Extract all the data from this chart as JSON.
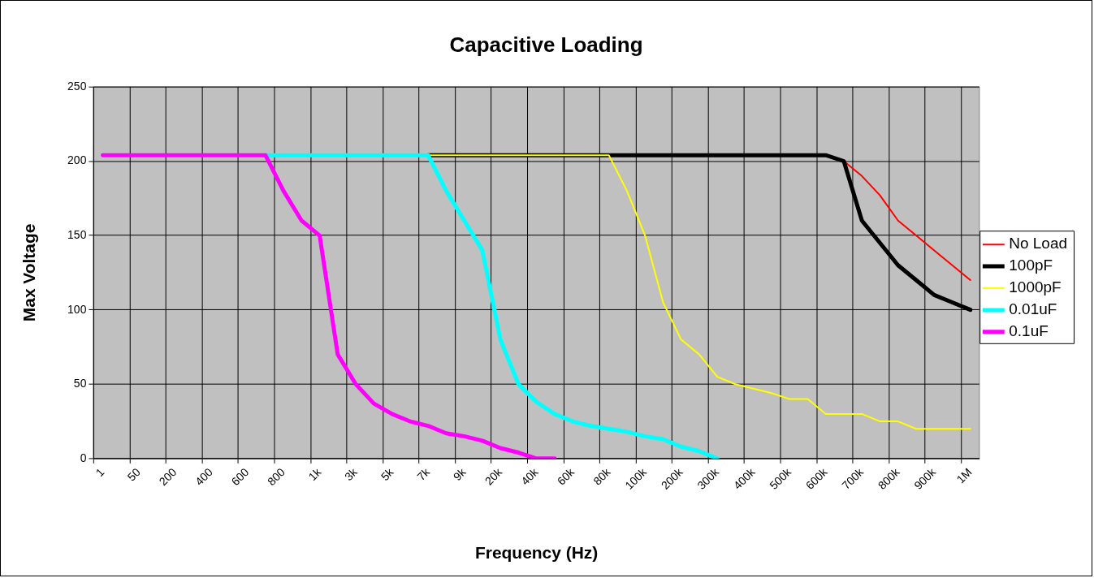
{
  "chart_data": {
    "type": "line",
    "title": "Capacitive Loading",
    "xlabel": "Frequency (Hz)",
    "ylabel": "Max Voltage",
    "categories": [
      "1",
      null,
      "50",
      null,
      "200",
      null,
      "400",
      null,
      "600",
      null,
      "800",
      null,
      "1k",
      null,
      "3k",
      null,
      "5k",
      null,
      "7k",
      null,
      "9k",
      null,
      "20k",
      null,
      "40k",
      null,
      "60k",
      null,
      "80k",
      null,
      "100k",
      null,
      "200k",
      null,
      "300k",
      null,
      "400k",
      null,
      "500k",
      null,
      "600k",
      null,
      "700k",
      null,
      "800k",
      null,
      "900k",
      null,
      "1M"
    ],
    "series": [
      {
        "name": "No Load",
        "color": "#ff0000",
        "values": [
          null,
          null,
          null,
          null,
          null,
          null,
          null,
          null,
          null,
          null,
          null,
          null,
          null,
          null,
          null,
          null,
          null,
          null,
          null,
          null,
          null,
          null,
          null,
          null,
          null,
          null,
          null,
          null,
          null,
          null,
          null,
          null,
          null,
          null,
          null,
          null,
          null,
          null,
          null,
          null,
          null,
          200,
          190,
          177,
          160,
          150,
          140,
          130,
          120
        ]
      },
      {
        "name": "100pF",
        "color": "#000000",
        "values": [
          null,
          null,
          null,
          null,
          null,
          null,
          null,
          null,
          null,
          null,
          null,
          null,
          null,
          null,
          null,
          null,
          null,
          null,
          204,
          204,
          204,
          204,
          204,
          204,
          204,
          204,
          204,
          204,
          204,
          204,
          204,
          204,
          204,
          204,
          204,
          204,
          204,
          204,
          204,
          204,
          204,
          200,
          160,
          145,
          130,
          120,
          110,
          105,
          100
        ]
      },
      {
        "name": "1000pF",
        "color": "#ffff00",
        "values": [
          null,
          null,
          null,
          null,
          null,
          null,
          null,
          null,
          null,
          null,
          null,
          null,
          null,
          null,
          null,
          null,
          null,
          null,
          204,
          204,
          204,
          204,
          204,
          204,
          204,
          204,
          204,
          204,
          204,
          180,
          150,
          105,
          80,
          70,
          55,
          50,
          47,
          44,
          40,
          40,
          30,
          30,
          30,
          25,
          25,
          20,
          20,
          20,
          20
        ]
      },
      {
        "name": "0.01uF",
        "color": "#00ffff",
        "values": [
          null,
          null,
          null,
          null,
          null,
          null,
          null,
          null,
          null,
          204,
          204,
          204,
          204,
          204,
          204,
          204,
          204,
          204,
          204,
          180,
          160,
          140,
          80,
          50,
          38,
          30,
          25,
          22,
          20,
          18,
          15,
          13,
          8,
          5,
          0,
          null,
          null,
          null,
          null,
          null,
          null,
          null,
          null,
          null,
          null,
          null,
          null,
          null,
          null
        ]
      },
      {
        "name": "0.1uF",
        "color": "#ff00ff",
        "values": [
          204,
          204,
          204,
          204,
          204,
          204,
          204,
          204,
          204,
          204,
          180,
          160,
          150,
          70,
          50,
          37,
          30,
          25,
          22,
          17,
          15,
          12,
          7,
          4,
          0,
          0,
          null,
          null,
          null,
          null,
          null,
          null,
          null,
          null,
          null,
          null,
          null,
          null,
          null,
          null,
          null,
          null,
          null,
          null,
          null,
          null,
          null,
          null,
          null
        ]
      }
    ],
    "ylim": [
      0,
      250
    ],
    "yticks": [
      0,
      50,
      100,
      150,
      200,
      250
    ],
    "grid": true,
    "legend": "right",
    "marker": "none",
    "line_style": "solid"
  }
}
